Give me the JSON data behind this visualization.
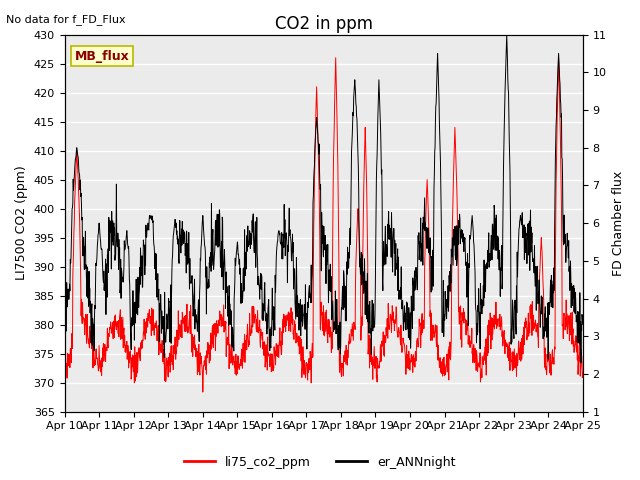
{
  "title": "CO2 in ppm",
  "top_left_text": "No data for f_FD_Flux",
  "ylabel_left": "LI7500 CO2 (ppm)",
  "ylabel_right": "FD Chamber flux",
  "ylim_left": [
    365,
    430
  ],
  "ylim_right": [
    1.0,
    11.0
  ],
  "yticks_left": [
    365,
    370,
    375,
    380,
    385,
    390,
    395,
    400,
    405,
    410,
    415,
    420,
    425,
    430
  ],
  "yticks_right": [
    1.0,
    2.0,
    3.0,
    4.0,
    5.0,
    6.0,
    7.0,
    8.0,
    9.0,
    10.0,
    11.0
  ],
  "xtick_labels": [
    "Apr 10",
    "Apr 11",
    "Apr 12",
    "Apr 13",
    "Apr 14",
    "Apr 15",
    "Apr 16",
    "Apr 17",
    "Apr 18",
    "Apr 19",
    "Apr 20",
    "Apr 21",
    "Apr 22",
    "Apr 23",
    "Apr 24",
    "Apr 25"
  ],
  "mb_flux_box_color": "#ffffcc",
  "mb_flux_text_color": "#8b0000",
  "mb_flux_border_color": "#b8b800",
  "legend_entries": [
    "li75_co2_ppm",
    "er_ANNnight"
  ],
  "legend_colors": [
    "#ff0000",
    "#000000"
  ],
  "line_color_co2": "#ff0000",
  "line_color_flux": "#000000",
  "background_color": "#ebebeb",
  "grid_color": "#ffffff",
  "title_fontsize": 12,
  "axis_fontsize": 9,
  "tick_fontsize": 8
}
